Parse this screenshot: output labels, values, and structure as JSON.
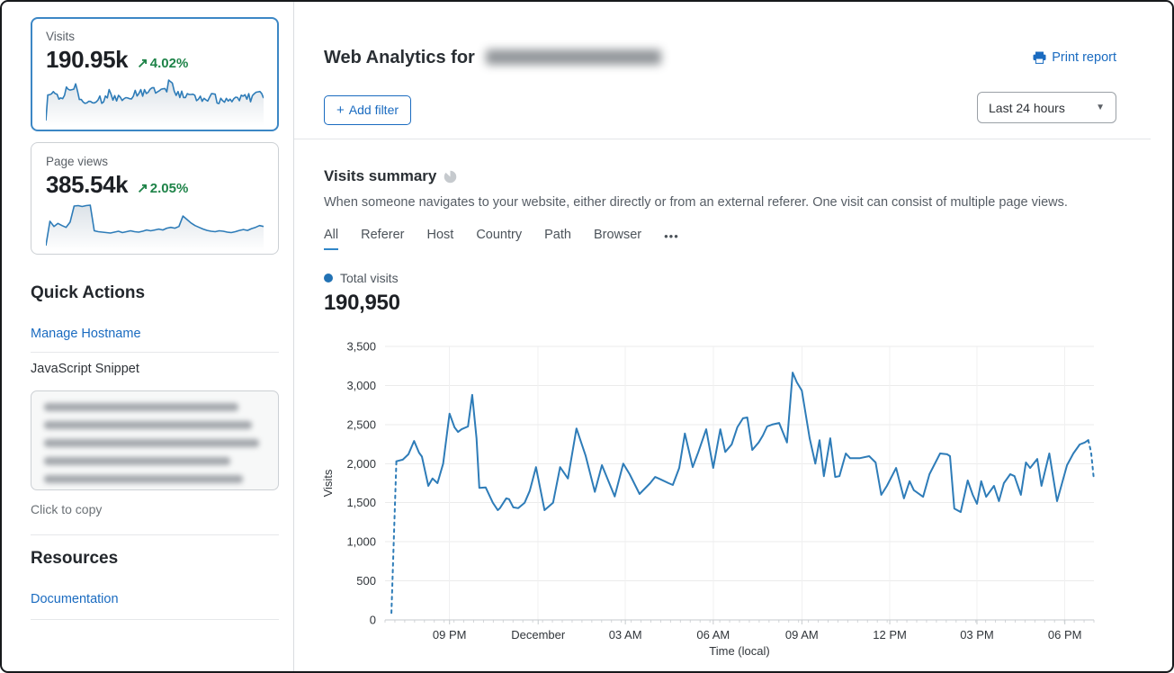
{
  "header": {
    "title_prefix": "Web Analytics for",
    "print_report": "Print report"
  },
  "toolbar": {
    "add_filter_plus": "+",
    "add_filter_label": "Add filter",
    "time_range": "Last 24 hours"
  },
  "sidebar": {
    "cards": [
      {
        "label": "Visits",
        "value": "190.95k",
        "delta": "4.02%",
        "selected": true
      },
      {
        "label": "Page views",
        "value": "385.54k",
        "delta": "2.05%",
        "selected": false,
        "spark": [
          4,
          60,
          48,
          55,
          50,
          46,
          58,
          95,
          96,
          94,
          96,
          97,
          38,
          36,
          35,
          34,
          33,
          35,
          37,
          34,
          36,
          38,
          36,
          35,
          37,
          40,
          38,
          40,
          42,
          40,
          44,
          46,
          44,
          48,
          72,
          64,
          56,
          50,
          46,
          42,
          39,
          37,
          36,
          38,
          37,
          35,
          34,
          36,
          39,
          41,
          39,
          43,
          46,
          50,
          48
        ]
      }
    ],
    "quick_actions": {
      "heading": "Quick Actions",
      "manage_hostname": "Manage Hostname",
      "js_snippet": "JavaScript Snippet",
      "click_to_copy": "Click to copy"
    },
    "resources": {
      "heading": "Resources",
      "documentation": "Documentation"
    }
  },
  "summary": {
    "heading": "Visits summary",
    "description": "When someone navigates to your website, either directly or from an external referer. One visit can consist of multiple page views.",
    "tabs": [
      "All",
      "Referer",
      "Host",
      "Country",
      "Path",
      "Browser"
    ],
    "more_tab": "•••",
    "active_tab": "All",
    "legend": "Total visits",
    "total": "190,950"
  },
  "icons": {
    "arrow_up_right": "↗",
    "caret_down": "▼"
  },
  "colors": {
    "accent_blue": "#1a6bc0",
    "chart_blue": "#2e7cb8",
    "positive_green": "#1e8348",
    "selected_card_border": "#3c87c5"
  },
  "chart_data": {
    "type": "line",
    "series_name": "Total visits",
    "total_label": "190,950",
    "xlabel": "Time (local)",
    "ylabel": "Visits",
    "ylim": [
      0,
      3500
    ],
    "ytick_step": 500,
    "yticks": [
      "0",
      "500",
      "1,000",
      "1,500",
      "2,000",
      "2,500",
      "3,000",
      "3,500"
    ],
    "xticks": [
      {
        "label": "09 PM",
        "f": 0.091
      },
      {
        "label": "December",
        "f": 0.216
      },
      {
        "label": "03 AM",
        "f": 0.339
      },
      {
        "label": "06 AM",
        "f": 0.463
      },
      {
        "label": "09 AM",
        "f": 0.588
      },
      {
        "label": "12 PM",
        "f": 0.712
      },
      {
        "label": "03 PM",
        "f": 0.835
      },
      {
        "label": "06 PM",
        "f": 0.959
      }
    ],
    "grid": true,
    "legend_position": "top-left",
    "line_color": "#2e7cb8",
    "dashed_head_segments": 1,
    "dashed_tail_segments": 2,
    "points": [
      [
        0.009,
        90
      ],
      [
        0.016,
        2030
      ],
      [
        0.025,
        2050
      ],
      [
        0.033,
        2120
      ],
      [
        0.041,
        2290
      ],
      [
        0.048,
        2140
      ],
      [
        0.052,
        2090
      ],
      [
        0.061,
        1715
      ],
      [
        0.067,
        1810
      ],
      [
        0.074,
        1750
      ],
      [
        0.082,
        2000
      ],
      [
        0.091,
        2640
      ],
      [
        0.098,
        2465
      ],
      [
        0.103,
        2405
      ],
      [
        0.108,
        2440
      ],
      [
        0.117,
        2475
      ],
      [
        0.123,
        2880
      ],
      [
        0.129,
        2325
      ],
      [
        0.133,
        1690
      ],
      [
        0.142,
        1695
      ],
      [
        0.152,
        1500
      ],
      [
        0.159,
        1405
      ],
      [
        0.162,
        1430
      ],
      [
        0.171,
        1555
      ],
      [
        0.175,
        1545
      ],
      [
        0.181,
        1440
      ],
      [
        0.188,
        1430
      ],
      [
        0.197,
        1500
      ],
      [
        0.204,
        1650
      ],
      [
        0.213,
        1955
      ],
      [
        0.225,
        1405
      ],
      [
        0.237,
        1500
      ],
      [
        0.247,
        1955
      ],
      [
        0.258,
        1810
      ],
      [
        0.27,
        2450
      ],
      [
        0.283,
        2100
      ],
      [
        0.296,
        1640
      ],
      [
        0.306,
        1980
      ],
      [
        0.324,
        1580
      ],
      [
        0.336,
        2000
      ],
      [
        0.345,
        1865
      ],
      [
        0.359,
        1612
      ],
      [
        0.374,
        1750
      ],
      [
        0.381,
        1830
      ],
      [
        0.387,
        1805
      ],
      [
        0.4,
        1750
      ],
      [
        0.406,
        1727
      ],
      [
        0.415,
        1945
      ],
      [
        0.423,
        2385
      ],
      [
        0.434,
        1955
      ],
      [
        0.442,
        2150
      ],
      [
        0.453,
        2440
      ],
      [
        0.463,
        1945
      ],
      [
        0.473,
        2440
      ],
      [
        0.48,
        2150
      ],
      [
        0.489,
        2245
      ],
      [
        0.497,
        2465
      ],
      [
        0.505,
        2580
      ],
      [
        0.511,
        2590
      ],
      [
        0.518,
        2175
      ],
      [
        0.527,
        2270
      ],
      [
        0.533,
        2360
      ],
      [
        0.539,
        2475
      ],
      [
        0.546,
        2500
      ],
      [
        0.556,
        2520
      ],
      [
        0.567,
        2270
      ],
      [
        0.575,
        3165
      ],
      [
        0.581,
        3040
      ],
      [
        0.588,
        2935
      ],
      [
        0.599,
        2325
      ],
      [
        0.607,
        2000
      ],
      [
        0.613,
        2300
      ],
      [
        0.619,
        1840
      ],
      [
        0.628,
        2325
      ],
      [
        0.635,
        1830
      ],
      [
        0.641,
        1840
      ],
      [
        0.65,
        2130
      ],
      [
        0.656,
        2070
      ],
      [
        0.67,
        2070
      ],
      [
        0.683,
        2095
      ],
      [
        0.692,
        2015
      ],
      [
        0.7,
        1600
      ],
      [
        0.708,
        1715
      ],
      [
        0.721,
        1945
      ],
      [
        0.732,
        1555
      ],
      [
        0.74,
        1775
      ],
      [
        0.746,
        1660
      ],
      [
        0.759,
        1575
      ],
      [
        0.768,
        1865
      ],
      [
        0.783,
        2130
      ],
      [
        0.793,
        2120
      ],
      [
        0.797,
        2095
      ],
      [
        0.803,
        1425
      ],
      [
        0.812,
        1380
      ],
      [
        0.822,
        1785
      ],
      [
        0.829,
        1600
      ],
      [
        0.835,
        1485
      ],
      [
        0.841,
        1775
      ],
      [
        0.848,
        1575
      ],
      [
        0.859,
        1715
      ],
      [
        0.866,
        1520
      ],
      [
        0.873,
        1750
      ],
      [
        0.882,
        1865
      ],
      [
        0.888,
        1840
      ],
      [
        0.897,
        1600
      ],
      [
        0.904,
        2015
      ],
      [
        0.91,
        1945
      ],
      [
        0.92,
        2060
      ],
      [
        0.926,
        1715
      ],
      [
        0.937,
        2130
      ],
      [
        0.948,
        1520
      ],
      [
        0.962,
        1980
      ],
      [
        0.971,
        2130
      ],
      [
        0.98,
        2245
      ],
      [
        0.987,
        2270
      ],
      [
        0.992,
        2300
      ],
      [
        0.996,
        2150
      ],
      [
        1.0,
        1790
      ]
    ]
  }
}
